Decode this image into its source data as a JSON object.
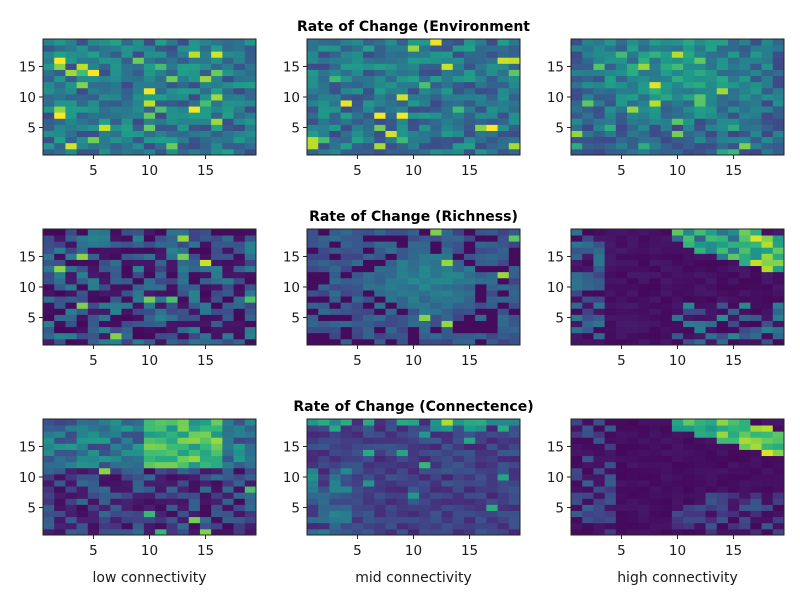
{
  "figure": {
    "row_titles": [
      "Rate of Change (Environment",
      "Rate of Change (Richness)",
      "Rate of Change (Connectence)"
    ],
    "column_labels": [
      "low connectivity",
      "mid connectivity",
      "high connectivity"
    ]
  },
  "chart_data": {
    "type": "heatmap",
    "layout": "3x3 grid of heatmaps",
    "colormap": "viridis",
    "grid_size": 19,
    "x_ticks": [
      5,
      10,
      15
    ],
    "y_ticks": [
      5,
      10,
      15
    ],
    "xlim": [
      0.5,
      19.5
    ],
    "ylim": [
      0.5,
      19.5
    ],
    "rows": [
      {
        "title": "Rate of Change (Environment",
        "panels": [
          {
            "column": "low connectivity",
            "pattern": "scattered",
            "seed": 11
          },
          {
            "column": "mid connectivity",
            "pattern": "scattered",
            "seed": 23
          },
          {
            "column": "high connectivity",
            "pattern": "scattered_warm_center",
            "seed": 37
          }
        ]
      },
      {
        "title": "Rate of Change (Richness)",
        "panels": [
          {
            "column": "low connectivity",
            "pattern": "mixed_low",
            "seed": 41
          },
          {
            "column": "mid connectivity",
            "pattern": "center_blob",
            "seed": 53
          },
          {
            "column": "high connectivity",
            "pattern": "upper_right_band",
            "seed": 67
          }
        ]
      },
      {
        "title": "Rate of Change (Connectence)",
        "panels": [
          {
            "column": "low connectivity",
            "pattern": "top_band",
            "seed": 71
          },
          {
            "column": "mid connectivity",
            "pattern": "left_edge",
            "seed": 83
          },
          {
            "column": "high connectivity",
            "pattern": "upper_right_band_strong",
            "seed": 97
          }
        ]
      }
    ]
  }
}
